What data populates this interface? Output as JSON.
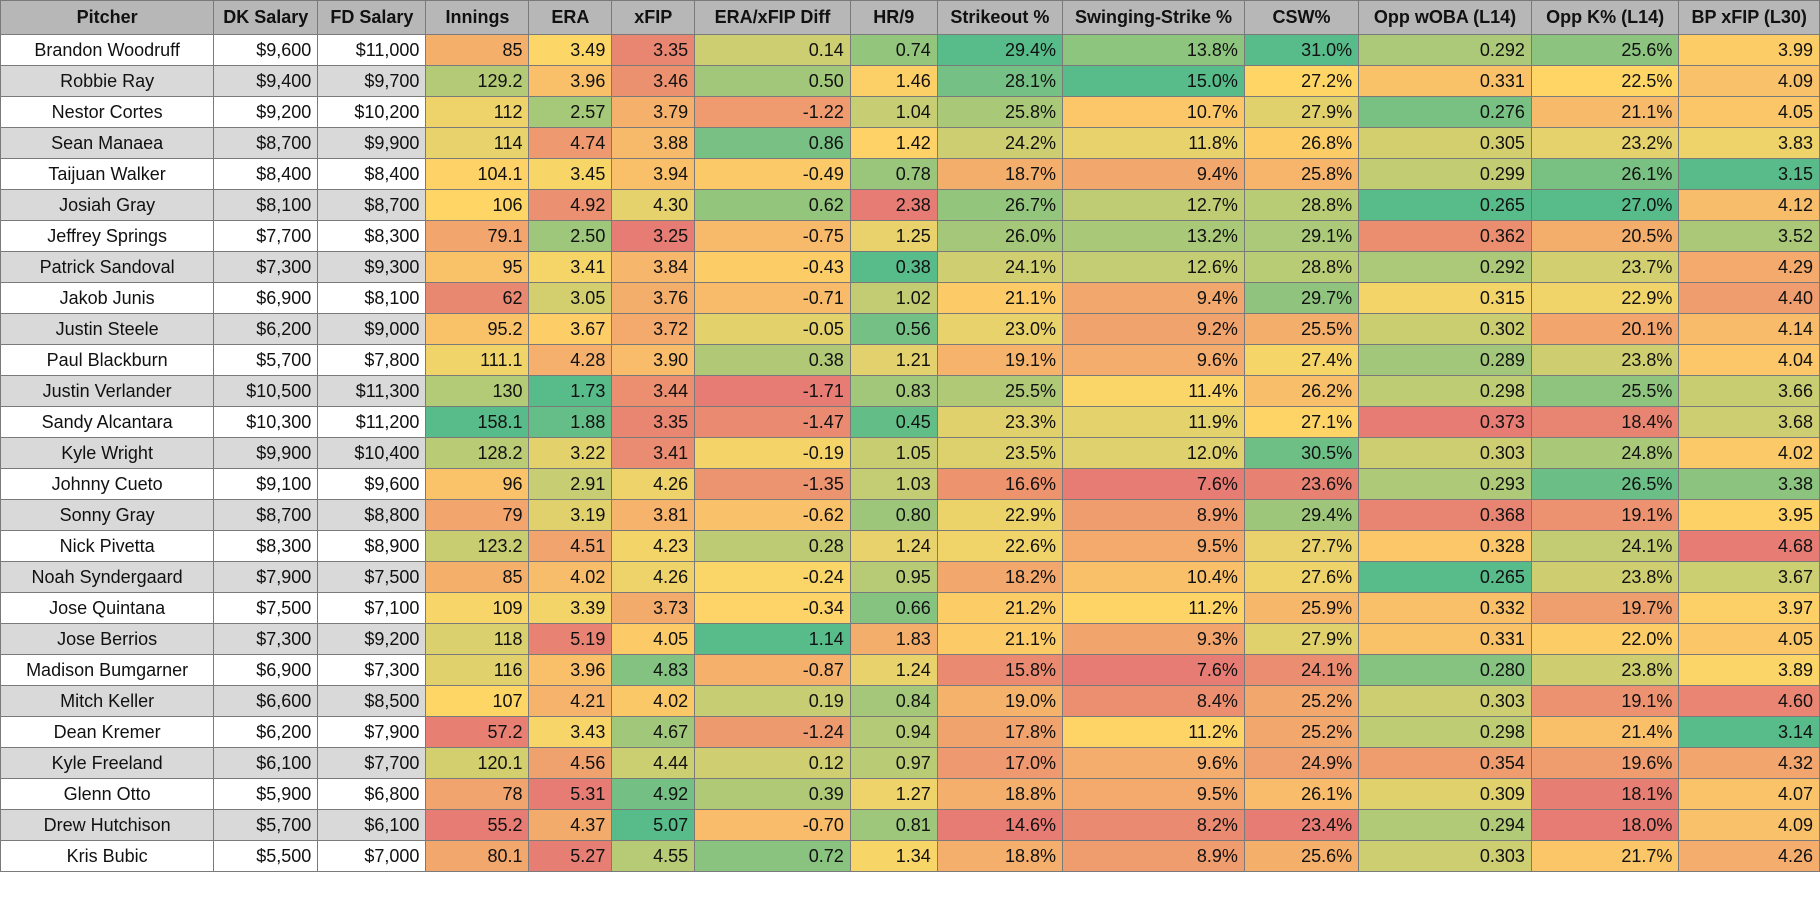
{
  "columns": [
    "Pitcher",
    "DK Salary",
    "FD Salary",
    "Innings",
    "ERA",
    "xFIP",
    "ERA/xFIP Diff",
    "HR/9",
    "Strikeout %",
    "Swinging-Strike %",
    "CSW%",
    "Opp wOBA (L14)",
    "Opp K% (L14)",
    "BP xFIP (L30)"
  ],
  "rows": [
    [
      "Brandon Woodruff",
      "$9,600",
      "$11,000",
      "85",
      "3.49",
      "3.35",
      "0.14",
      "0.74",
      "29.4%",
      "13.8%",
      "31.0%",
      "0.292",
      "25.6%",
      "3.99"
    ],
    [
      "Robbie Ray",
      "$9,400",
      "$9,700",
      "129.2",
      "3.96",
      "3.46",
      "0.50",
      "1.46",
      "28.1%",
      "15.0%",
      "27.2%",
      "0.331",
      "22.5%",
      "4.09"
    ],
    [
      "Nestor Cortes",
      "$9,200",
      "$10,200",
      "112",
      "2.57",
      "3.79",
      "-1.22",
      "1.04",
      "25.8%",
      "10.7%",
      "27.9%",
      "0.276",
      "21.1%",
      "4.05"
    ],
    [
      "Sean Manaea",
      "$8,700",
      "$9,900",
      "114",
      "4.74",
      "3.88",
      "0.86",
      "1.42",
      "24.2%",
      "11.8%",
      "26.8%",
      "0.305",
      "23.2%",
      "3.83"
    ],
    [
      "Taijuan Walker",
      "$8,400",
      "$8,400",
      "104.1",
      "3.45",
      "3.94",
      "-0.49",
      "0.78",
      "18.7%",
      "9.4%",
      "25.8%",
      "0.299",
      "26.1%",
      "3.15"
    ],
    [
      "Josiah Gray",
      "$8,100",
      "$8,700",
      "106",
      "4.92",
      "4.30",
      "0.62",
      "2.38",
      "26.7%",
      "12.7%",
      "28.8%",
      "0.265",
      "27.0%",
      "4.12"
    ],
    [
      "Jeffrey Springs",
      "$7,700",
      "$8,300",
      "79.1",
      "2.50",
      "3.25",
      "-0.75",
      "1.25",
      "26.0%",
      "13.2%",
      "29.1%",
      "0.362",
      "20.5%",
      "3.52"
    ],
    [
      "Patrick Sandoval",
      "$7,300",
      "$9,300",
      "95",
      "3.41",
      "3.84",
      "-0.43",
      "0.38",
      "24.1%",
      "12.6%",
      "28.8%",
      "0.292",
      "23.7%",
      "4.29"
    ],
    [
      "Jakob Junis",
      "$6,900",
      "$8,100",
      "62",
      "3.05",
      "3.76",
      "-0.71",
      "1.02",
      "21.1%",
      "9.4%",
      "29.7%",
      "0.315",
      "22.9%",
      "4.40"
    ],
    [
      "Justin Steele",
      "$6,200",
      "$9,000",
      "95.2",
      "3.67",
      "3.72",
      "-0.05",
      "0.56",
      "23.0%",
      "9.2%",
      "25.5%",
      "0.302",
      "20.1%",
      "4.14"
    ],
    [
      "Paul Blackburn",
      "$5,700",
      "$7,800",
      "111.1",
      "4.28",
      "3.90",
      "0.38",
      "1.21",
      "19.1%",
      "9.6%",
      "27.4%",
      "0.289",
      "23.8%",
      "4.04"
    ],
    [
      "Justin Verlander",
      "$10,500",
      "$11,300",
      "130",
      "1.73",
      "3.44",
      "-1.71",
      "0.83",
      "25.5%",
      "11.4%",
      "26.2%",
      "0.298",
      "25.5%",
      "3.66"
    ],
    [
      "Sandy Alcantara",
      "$10,300",
      "$11,200",
      "158.1",
      "1.88",
      "3.35",
      "-1.47",
      "0.45",
      "23.3%",
      "11.9%",
      "27.1%",
      "0.373",
      "18.4%",
      "3.68"
    ],
    [
      "Kyle Wright",
      "$9,900",
      "$10,400",
      "128.2",
      "3.22",
      "3.41",
      "-0.19",
      "1.05",
      "23.5%",
      "12.0%",
      "30.5%",
      "0.303",
      "24.8%",
      "4.02"
    ],
    [
      "Johnny Cueto",
      "$9,100",
      "$9,600",
      "96",
      "2.91",
      "4.26",
      "-1.35",
      "1.03",
      "16.6%",
      "7.6%",
      "23.6%",
      "0.293",
      "26.5%",
      "3.38"
    ],
    [
      "Sonny Gray",
      "$8,700",
      "$8,800",
      "79",
      "3.19",
      "3.81",
      "-0.62",
      "0.80",
      "22.9%",
      "8.9%",
      "29.4%",
      "0.368",
      "19.1%",
      "3.95"
    ],
    [
      "Nick Pivetta",
      "$8,300",
      "$8,900",
      "123.2",
      "4.51",
      "4.23",
      "0.28",
      "1.24",
      "22.6%",
      "9.5%",
      "27.7%",
      "0.328",
      "24.1%",
      "4.68"
    ],
    [
      "Noah Syndergaard",
      "$7,900",
      "$7,500",
      "85",
      "4.02",
      "4.26",
      "-0.24",
      "0.95",
      "18.2%",
      "10.4%",
      "27.6%",
      "0.265",
      "23.8%",
      "3.67"
    ],
    [
      "Jose Quintana",
      "$7,500",
      "$7,100",
      "109",
      "3.39",
      "3.73",
      "-0.34",
      "0.66",
      "21.2%",
      "11.2%",
      "25.9%",
      "0.332",
      "19.7%",
      "3.97"
    ],
    [
      "Jose Berrios",
      "$7,300",
      "$9,200",
      "118",
      "5.19",
      "4.05",
      "1.14",
      "1.83",
      "21.1%",
      "9.3%",
      "27.9%",
      "0.331",
      "22.0%",
      "4.05"
    ],
    [
      "Madison Bumgarner",
      "$6,900",
      "$7,300",
      "116",
      "3.96",
      "4.83",
      "-0.87",
      "1.24",
      "15.8%",
      "7.6%",
      "24.1%",
      "0.280",
      "23.8%",
      "3.89"
    ],
    [
      "Mitch Keller",
      "$6,600",
      "$8,500",
      "107",
      "4.21",
      "4.02",
      "0.19",
      "0.84",
      "19.0%",
      "8.4%",
      "25.2%",
      "0.303",
      "19.1%",
      "4.60"
    ],
    [
      "Dean Kremer",
      "$6,200",
      "$7,900",
      "57.2",
      "3.43",
      "4.67",
      "-1.24",
      "0.94",
      "17.8%",
      "11.2%",
      "25.2%",
      "0.298",
      "21.4%",
      "3.14"
    ],
    [
      "Kyle Freeland",
      "$6,100",
      "$7,700",
      "120.1",
      "4.56",
      "4.44",
      "0.12",
      "0.97",
      "17.0%",
      "9.6%",
      "24.9%",
      "0.354",
      "19.6%",
      "4.32"
    ],
    [
      "Glenn Otto",
      "$5,900",
      "$6,800",
      "78",
      "5.31",
      "4.92",
      "0.39",
      "1.27",
      "18.8%",
      "9.5%",
      "26.1%",
      "0.309",
      "18.1%",
      "4.07"
    ],
    [
      "Drew Hutchison",
      "$5,700",
      "$6,100",
      "55.2",
      "4.37",
      "5.07",
      "-0.70",
      "0.81",
      "14.6%",
      "8.2%",
      "23.4%",
      "0.294",
      "18.0%",
      "4.09"
    ],
    [
      "Kris Bubic",
      "$5,500",
      "$7,000",
      "80.1",
      "5.27",
      "4.55",
      "0.72",
      "1.34",
      "18.8%",
      "8.9%",
      "25.6%",
      "0.303",
      "21.7%",
      "4.26"
    ]
  ],
  "colors": {
    "header_bg": "#b7b7b7",
    "row_band": "#d9d9d9",
    "row_plain": "#ffffff",
    "scale_low": "#e67c73",
    "scale_mid": "#ffd666",
    "scale_high": "#57bb8a"
  },
  "color_scale": {
    "higher_is_green": [
      3,
      5,
      6,
      8,
      9,
      10,
      12
    ],
    "lower_is_green": [
      4,
      7,
      11,
      13
    ],
    "uncolored": [
      0,
      1,
      2
    ]
  }
}
